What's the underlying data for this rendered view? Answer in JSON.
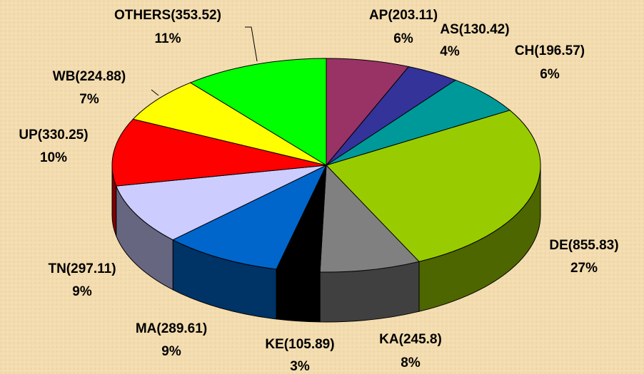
{
  "chart_data": {
    "type": "pie3d",
    "categories": [
      "AP(203.11)",
      "AS(130.42)",
      "CH(196.57)",
      "DE(855.83)",
      "KA(245.8)",
      "KE(105.89)",
      "MA(289.61)",
      "TN(297.11)",
      "UP(330.25)",
      "WB(224.88)",
      "OTHERS(353.52)"
    ],
    "values": [
      203.11,
      130.42,
      196.57,
      855.83,
      245.8,
      105.89,
      289.61,
      297.11,
      330.25,
      224.88,
      353.52
    ],
    "percent_labels": [
      "6%",
      "4%",
      "6%",
      "27%",
      "8%",
      "3%",
      "9%",
      "9%",
      "10%",
      "7%",
      "11%"
    ],
    "colors": [
      "#993366",
      "#333399",
      "#009999",
      "#99cc00",
      "#808080",
      "#000000",
      "#0066cc",
      "#ccccff",
      "#ff0000",
      "#ffff00",
      "#00ff00"
    ]
  }
}
